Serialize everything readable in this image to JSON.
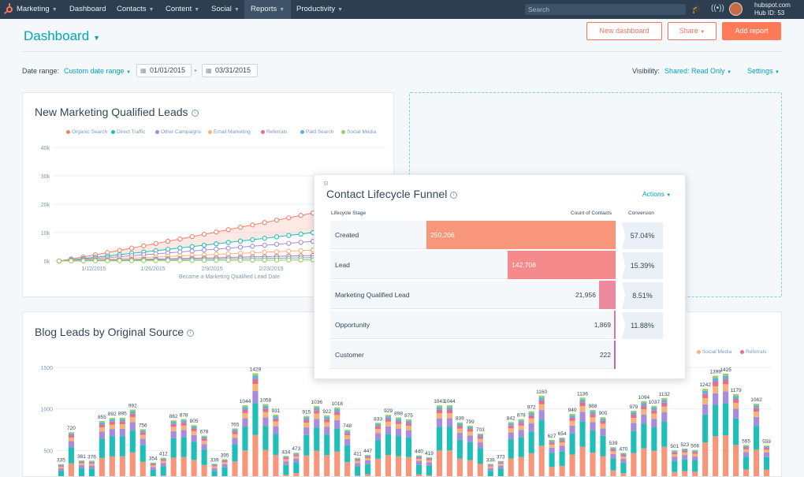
{
  "nav": {
    "items": [
      {
        "label": "Marketing",
        "caret": true,
        "x": 21
      },
      {
        "label": "Dashboard",
        "caret": false,
        "x": 88
      },
      {
        "label": "Contacts",
        "caret": true,
        "x": 148
      },
      {
        "label": "Content",
        "caret": true,
        "x": 210
      },
      {
        "label": "Social",
        "caret": true,
        "x": 268
      },
      {
        "label": "Reports",
        "caret": true,
        "x": 318,
        "active": true
      },
      {
        "label": "Productivity",
        "caret": true,
        "x": 376
      }
    ],
    "search_placeholder": "Search",
    "hub_domain": "hubspot.com",
    "hub_id": "Hub ID: 53"
  },
  "header": {
    "title": "Dashboard",
    "new_dashboard": "New dashboard",
    "share": "Share",
    "add_report": "Add report",
    "date_range_label": "Date range:",
    "date_range_value": "Custom date range",
    "start_date": "01/01/2015",
    "end_date": "03/31/2015",
    "visibility_label": "Visibility:",
    "visibility_value": "Shared: Read Only",
    "settings": "Settings"
  },
  "mql": {
    "title": "New Marketing Qualified Leads",
    "legend": [
      {
        "name": "Organic Search",
        "color": "#f2836b"
      },
      {
        "name": "Direct Traffic",
        "color": "#1fbfb8"
      },
      {
        "name": "Other Campaigns",
        "color": "#a78bdc"
      },
      {
        "name": "Email Marketing",
        "color": "#f5b37a"
      },
      {
        "name": "Referrals",
        "color": "#e36f8c"
      },
      {
        "name": "Paid Search",
        "color": "#5fb0e0"
      },
      {
        "name": "Social Media",
        "color": "#9ccc65"
      }
    ],
    "xlabel": "Became a Marketing Qualified Lead Date"
  },
  "funnel": {
    "title": "Contact Lifecycle Funnel",
    "actions": "Actions",
    "col_stage": "Lifecycle Stage",
    "col_count": "Count of Contacts",
    "col_conv": "Conversion",
    "rows": [
      {
        "stage": "Created",
        "count": "250,206",
        "value": 250206,
        "color": "#f8967c"
      },
      {
        "stage": "Lead",
        "count": "142,708",
        "value": 142708,
        "color": "#f48a8c"
      },
      {
        "stage": "Marketing Qualified Lead",
        "count": "21,956",
        "value": 21956,
        "color": "#ec8ba0"
      },
      {
        "stage": "Opportunity",
        "count": "1,869",
        "value": 1869,
        "color": "#d77aa6"
      },
      {
        "stage": "Customer",
        "count": "222",
        "value": 222,
        "color": "#c16ab0"
      }
    ],
    "conversions": [
      "57.04%",
      "15.39%",
      "8.51%",
      "11.88%"
    ]
  },
  "blog": {
    "title": "Blog Leads by Original Source",
    "legend": [
      {
        "name": "Social Media",
        "color": "#f5b37a"
      },
      {
        "name": "Referrals",
        "color": "#e36f8c"
      }
    ]
  },
  "chart_data": [
    {
      "type": "line",
      "title": "New Marketing Qualified Leads",
      "xlabel": "Became a Marketing Qualified Lead Date",
      "ylabel": "",
      "ylim": [
        0,
        40000
      ],
      "y_ticks": [
        "40k",
        "30k",
        "20k",
        "10k",
        "0k"
      ],
      "x_ticks": [
        "1/12/2015",
        "1/26/2015",
        "2/9/2015",
        "2/23/2015"
      ],
      "legend_position": "top",
      "series": [
        {
          "name": "Organic Search",
          "color": "#f2836b",
          "end_value": 22000
        },
        {
          "name": "Direct Traffic",
          "color": "#1fbfb8",
          "end_value": 13000
        },
        {
          "name": "Other Campaigns",
          "color": "#a78bdc",
          "end_value": 9000
        },
        {
          "name": "Email Marketing",
          "color": "#f5b37a",
          "end_value": 5000
        },
        {
          "name": "Referrals",
          "color": "#e36f8c",
          "end_value": 2500
        },
        {
          "name": "Paid Search",
          "color": "#5fb0e0",
          "end_value": 1500
        },
        {
          "name": "Social Media",
          "color": "#9ccc65",
          "end_value": 500
        }
      ]
    },
    {
      "type": "bar",
      "title": "Blog Leads by Original Source",
      "ylim": [
        0,
        1500
      ],
      "y_ticks": [
        "1500",
        "1000",
        "500"
      ],
      "stacked": true,
      "data_labels": [
        335,
        720,
        381,
        376,
        855,
        892,
        895,
        992,
        756,
        354,
        412,
        862,
        878,
        805,
        678,
        339,
        395,
        765,
        1044,
        1429,
        1058,
        931,
        434,
        473,
        915,
        1036,
        922,
        1018,
        748,
        411,
        447,
        833,
        929,
        898,
        875,
        440,
        419,
        1043,
        1044,
        839,
        799,
        703,
        338,
        373,
        842,
        878,
        972,
        1160,
        627,
        654,
        940,
        1136,
        988,
        900,
        539,
        470,
        979,
        1094,
        1037,
        1132,
        501,
        523,
        506,
        1242,
        1399,
        1425,
        1179,
        565,
        1062,
        559
      ]
    }
  ]
}
